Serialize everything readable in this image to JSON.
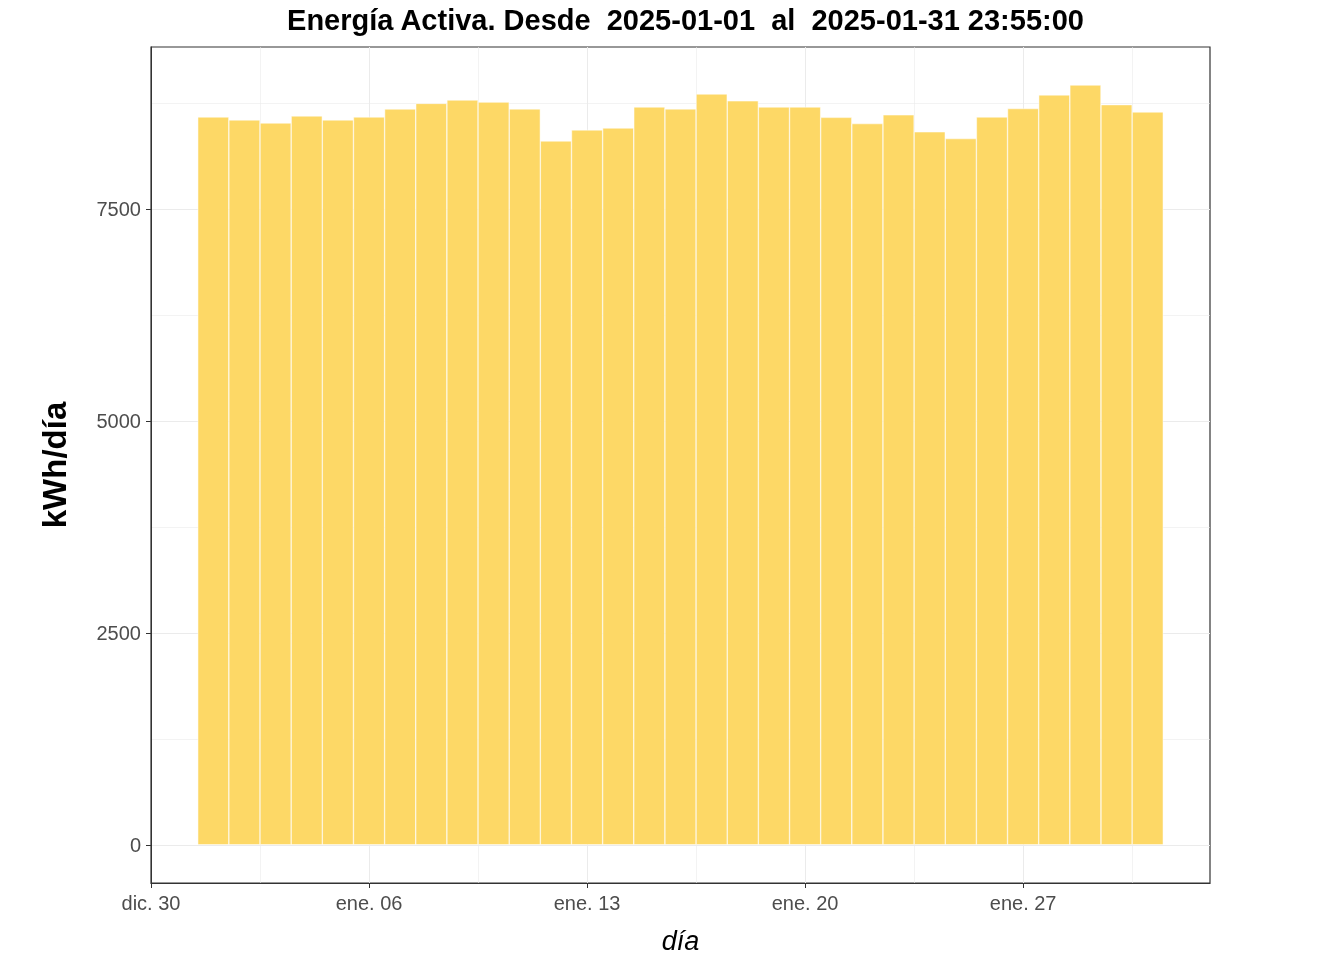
{
  "chart_data": {
    "type": "bar",
    "title": "Energía Activa. Desde  2025-01-01  al  2025-01-31 23:55:00",
    "xlabel": "día",
    "ylabel": "kWh/día",
    "x": [
      "2025-01-01",
      "2025-01-02",
      "2025-01-03",
      "2025-01-04",
      "2025-01-05",
      "2025-01-06",
      "2025-01-07",
      "2025-01-08",
      "2025-01-09",
      "2025-01-10",
      "2025-01-11",
      "2025-01-12",
      "2025-01-13",
      "2025-01-14",
      "2025-01-15",
      "2025-01-16",
      "2025-01-17",
      "2025-01-18",
      "2025-01-19",
      "2025-01-20",
      "2025-01-21",
      "2025-01-22",
      "2025-01-23",
      "2025-01-24",
      "2025-01-25",
      "2025-01-26",
      "2025-01-27",
      "2025-01-28",
      "2025-01-29",
      "2025-01-30",
      "2025-01-31"
    ],
    "values": [
      8585,
      8550,
      8514,
      8597,
      8550,
      8585,
      8679,
      8745,
      8785,
      8760,
      8680,
      8302,
      8432,
      8455,
      8703,
      8680,
      8856,
      8775,
      8703,
      8703,
      8580,
      8507,
      8610,
      8410,
      8330,
      8585,
      8684,
      8845,
      8962,
      8730,
      8644
    ],
    "color": "#fdd866",
    "xlim": [
      "2024-12-30",
      "2025-02-02"
    ],
    "xticks": [
      {
        "value": "2024-12-30",
        "label": "dic. 30"
      },
      {
        "value": "2025-01-06",
        "label": "ene. 06"
      },
      {
        "value": "2025-01-13",
        "label": "ene. 13"
      },
      {
        "value": "2025-01-20",
        "label": "ene. 20"
      },
      {
        "value": "2025-01-27",
        "label": "ene. 27"
      }
    ],
    "ylim": [
      -450,
      9410
    ],
    "yticks": [
      0,
      2500,
      5000,
      7500
    ],
    "grid": true
  }
}
